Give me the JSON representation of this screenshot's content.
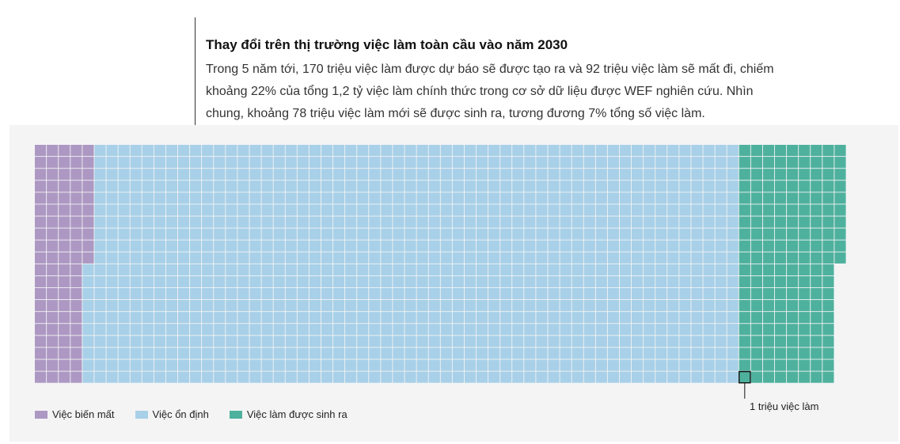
{
  "header": {
    "title": "Thay đổi trên thị trường việc làm toàn cầu vào năm 2030",
    "subtitle_lines": [
      "Trong 5 năm tới, 170 triệu việc làm được dự báo sẽ được tạo ra và 92 triệu việc làm sẽ mất đi, chiếm",
      "khoảng 22% của tổng 1,2 tỷ việc làm chính thức trong cơ sở dữ liệu được WEF nghiên cứu. Nhìn",
      "chung, khoảng 78 triệu việc làm mới sẽ được sinh ra, tương đương 7% tổng số việc làm."
    ]
  },
  "colors": {
    "lost": "#ad98c3",
    "stable": "#a8d0e8",
    "new": "#4eb19e",
    "panel": "#f4f4f4"
  },
  "chart_data": {
    "type": "waffle",
    "unit_value": 1,
    "unit_label": "1 triệu việc làm",
    "rows": 20,
    "series": [
      {
        "name": "Việc biến mất",
        "color_key": "lost",
        "value": 92
      },
      {
        "name": "Việc ổn định",
        "color_key": "stable",
        "value": 1108
      },
      {
        "name": "Việc làm được sinh ra",
        "color_key": "new",
        "value": 170
      }
    ]
  },
  "legend": {
    "items": [
      {
        "label": "Việc biến mất",
        "color_key": "lost"
      },
      {
        "label": "Việc ổn định",
        "color_key": "stable"
      },
      {
        "label": "Việc làm được sinh ra",
        "color_key": "new"
      }
    ]
  }
}
